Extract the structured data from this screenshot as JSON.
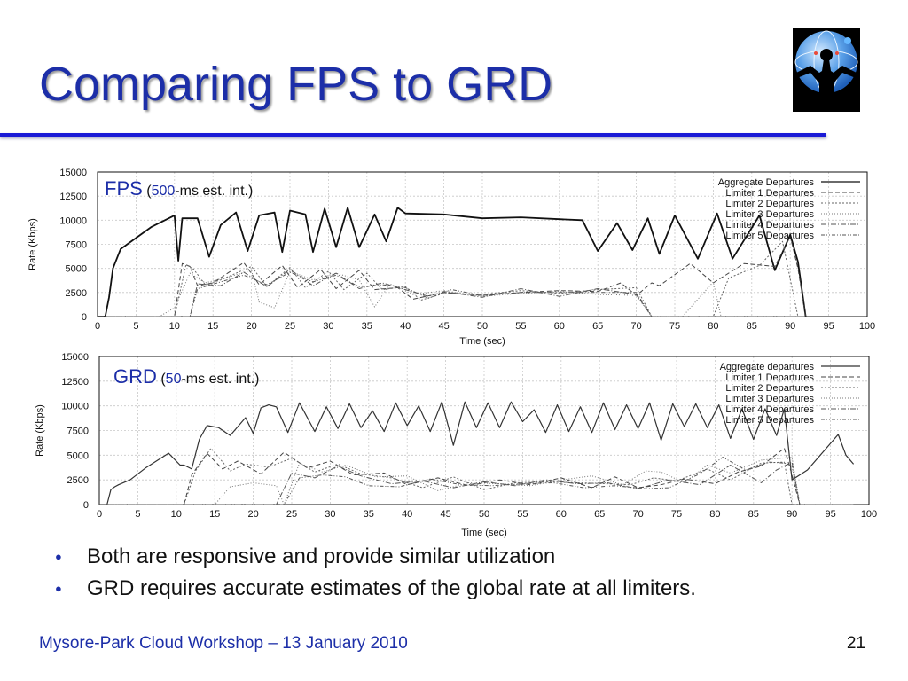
{
  "slide": {
    "title": "Comparing FPS to GRD",
    "bullets": [
      "Both are responsive and provide similar utilization",
      "GRD requires accurate estimates of the global rate at all limiters."
    ],
    "footer": {
      "left": "Mysore-Park Cloud Workshop",
      "separator": " – ",
      "date": "13 January 2010",
      "page": "21"
    },
    "colors": {
      "accent": "#1c2ea8",
      "title_rule": "#1a1ad6"
    },
    "logo_icon": "person-globe-logo-icon"
  },
  "chart_data": [
    {
      "type": "line",
      "title_main": "FPS",
      "title_open": " (",
      "title_num": "500",
      "title_rest": "-ms est. int.)",
      "xlabel": "Time (sec)",
      "ylabel": "Rate (Kbps)",
      "xlim": [
        0,
        100
      ],
      "ylim": [
        0,
        15000
      ],
      "x_ticks": [
        0,
        5,
        10,
        15,
        20,
        25,
        30,
        35,
        40,
        45,
        50,
        55,
        60,
        65,
        70,
        75,
        80,
        85,
        90,
        95,
        100
      ],
      "y_ticks": [
        0,
        2500,
        5000,
        7500,
        10000,
        12500,
        15000
      ],
      "grid": true,
      "legend_position": "top-right",
      "series": [
        {
          "name": "Aggregate Departures",
          "x": [
            0,
            1,
            1.5,
            2,
            2.5,
            3,
            7,
            10,
            10.5,
            11,
            13,
            14.5,
            16,
            18,
            19.5,
            21,
            23,
            24,
            25,
            27,
            28,
            29.5,
            31,
            32.5,
            34,
            36,
            37.5,
            39,
            40,
            45,
            50,
            55,
            60,
            63,
            65,
            67.5,
            69.5,
            71.5,
            73,
            75,
            78,
            80.5,
            82.5,
            86,
            88,
            90,
            91,
            92
          ],
          "values": [
            0,
            0,
            2000,
            5000,
            6000,
            7000,
            9300,
            10500,
            5800,
            10200,
            10200,
            6200,
            9500,
            10800,
            6800,
            10500,
            10800,
            6700,
            11000,
            10600,
            6700,
            11200,
            7200,
            11300,
            7200,
            10600,
            7800,
            11300,
            10700,
            10600,
            10200,
            10300,
            10100,
            10000,
            6800,
            9700,
            6900,
            10200,
            6500,
            10500,
            6000,
            10700,
            6000,
            10500,
            4800,
            8500,
            5700,
            0
          ]
        },
        {
          "name": "Limiter 1 Departures",
          "x": [
            0,
            10,
            11,
            12,
            13,
            15,
            19,
            21,
            24,
            26,
            29,
            31,
            34,
            36,
            39,
            41,
            45,
            50,
            55,
            60,
            65,
            68,
            70,
            72,
            73,
            77,
            80,
            84,
            88,
            90,
            91,
            92
          ],
          "values": [
            0,
            0,
            5500,
            5200,
            3200,
            3500,
            5600,
            3300,
            5300,
            3000,
            4900,
            2900,
            4800,
            2800,
            3000,
            1800,
            2500,
            2200,
            2500,
            2700,
            2600,
            3500,
            2200,
            3500,
            3200,
            5500,
            3500,
            5500,
            5200,
            8300,
            5000,
            0
          ]
        },
        {
          "name": "Limiter 2 Departures",
          "x": [
            0,
            10,
            11.5,
            12.5,
            14,
            16,
            20,
            22,
            25,
            27,
            30,
            32,
            35,
            37,
            40,
            42,
            45,
            50,
            55,
            60,
            65,
            70,
            72,
            75,
            78,
            80,
            82,
            86,
            89,
            91,
            92
          ],
          "values": [
            0,
            0,
            5400,
            4900,
            3300,
            3800,
            5200,
            3100,
            5100,
            3000,
            4700,
            2800,
            4500,
            2800,
            3100,
            1700,
            2400,
            2300,
            2700,
            2400,
            2800,
            3000,
            0,
            0,
            0,
            0,
            4000,
            5300,
            7800,
            0,
            0
          ]
        },
        {
          "name": "Limiter 3 Departures",
          "x": [
            0,
            8,
            10,
            12,
            14,
            17,
            20,
            21,
            23,
            25,
            28,
            31,
            34,
            36,
            38,
            41,
            45,
            50,
            55,
            60,
            65,
            70,
            72,
            76,
            80,
            81,
            85,
            88,
            92
          ],
          "values": [
            0,
            0,
            900,
            4500,
            3500,
            4100,
            4800,
            1500,
            900,
            4700,
            3800,
            4500,
            3800,
            1000,
            3400,
            2300,
            2700,
            2100,
            2400,
            2600,
            2300,
            2200,
            0,
            0,
            3600,
            0,
            0,
            0,
            0
          ]
        },
        {
          "name": "Limiter 4 Departures",
          "x": [
            0,
            12,
            13,
            16,
            19,
            22,
            25,
            28,
            31,
            34,
            37,
            40,
            43,
            45,
            50,
            55,
            60,
            65,
            70,
            72,
            92
          ],
          "values": [
            0,
            0,
            3400,
            3200,
            4600,
            3100,
            4900,
            3200,
            4500,
            2900,
            3500,
            2800,
            2100,
            2600,
            2000,
            2900,
            2100,
            2900,
            2300,
            0,
            0
          ]
        },
        {
          "name": "Limiter 5 Departures",
          "x": [
            0,
            12,
            13,
            16,
            19,
            22,
            25,
            28,
            31,
            34,
            37,
            40,
            43,
            46,
            50,
            55,
            60,
            65,
            70,
            72,
            92
          ],
          "values": [
            0,
            0,
            2900,
            3600,
            4300,
            3300,
            4600,
            3600,
            4300,
            3100,
            3300,
            3000,
            1900,
            2800,
            2200,
            2500,
            2500,
            2500,
            2500,
            0,
            0
          ]
        }
      ]
    },
    {
      "type": "line",
      "title_main": "GRD",
      "title_open": " (",
      "title_num": "50",
      "title_rest": "-ms est. int.)",
      "xlabel": "Time (sec)",
      "ylabel": "Rate (Kbps)",
      "xlim": [
        0,
        100
      ],
      "ylim": [
        0,
        15000
      ],
      "x_ticks": [
        0,
        5,
        10,
        15,
        20,
        25,
        30,
        35,
        40,
        45,
        50,
        55,
        60,
        65,
        70,
        75,
        80,
        85,
        90,
        95,
        100
      ],
      "y_ticks": [
        0,
        2500,
        5000,
        7500,
        10000,
        12500,
        15000
      ],
      "grid": true,
      "legend_position": "top-right",
      "series": [
        {
          "name": "Aggregate departures",
          "x": [
            0,
            1,
            1.5,
            2,
            2.5,
            4,
            6,
            9,
            10.5,
            11,
            12,
            13,
            14,
            15.5,
            17,
            19,
            20,
            21,
            22,
            23,
            24.5,
            26,
            28,
            29.5,
            31,
            32.5,
            34,
            35.5,
            37,
            38.5,
            40,
            41.5,
            43,
            44.5,
            46,
            47.5,
            49,
            50.5,
            52,
            53.5,
            55,
            56.5,
            58,
            59.5,
            61,
            62.5,
            64,
            65.5,
            67,
            68.5,
            70,
            71.5,
            73,
            74.5,
            76,
            77.5,
            79,
            80.5,
            82,
            83.5,
            85,
            86.5,
            88,
            89,
            90,
            92,
            96,
            97,
            98
          ],
          "values": [
            0,
            0,
            1500,
            1800,
            2000,
            2500,
            3700,
            5200,
            4000,
            4000,
            3600,
            6600,
            8000,
            7800,
            7000,
            8800,
            7200,
            9800,
            10100,
            9900,
            7300,
            10300,
            7400,
            9900,
            7700,
            10200,
            7800,
            9500,
            7400,
            10300,
            8000,
            10000,
            7400,
            10400,
            6000,
            10400,
            7800,
            10300,
            7800,
            10400,
            8400,
            9600,
            7300,
            10100,
            7400,
            9900,
            7300,
            10300,
            7600,
            10100,
            7700,
            10300,
            6500,
            10200,
            7900,
            10200,
            7800,
            10100,
            6700,
            9700,
            6600,
            9700,
            7000,
            9700,
            2500,
            3500,
            7100,
            5000,
            4100
          ]
        },
        {
          "name": "Limiter 1 Departures",
          "x": [
            0,
            11,
            12,
            14,
            16,
            18,
            21,
            24,
            27,
            30,
            33,
            37,
            40,
            44,
            48,
            52,
            56,
            60,
            64,
            67,
            70,
            73,
            76,
            80,
            83,
            86,
            89,
            90,
            91,
            98
          ],
          "values": [
            0,
            0,
            3000,
            5200,
            3600,
            4400,
            3100,
            5300,
            3700,
            4400,
            3000,
            3200,
            2000,
            2700,
            1900,
            2500,
            2000,
            2700,
            1700,
            2800,
            1700,
            2000,
            2600,
            2100,
            3300,
            3900,
            5700,
            3000,
            0,
            0
          ]
        },
        {
          "name": "Limiter 2 Departures",
          "x": [
            0,
            11,
            12.5,
            14.5,
            17,
            19,
            22,
            25,
            28,
            31,
            34,
            38,
            42,
            46,
            50,
            54,
            58,
            62,
            66,
            69,
            72,
            75,
            79,
            82,
            86,
            89,
            90,
            91,
            98
          ],
          "values": [
            0,
            0,
            3400,
            5700,
            3400,
            4100,
            3800,
            4700,
            3300,
            4100,
            3100,
            2700,
            1700,
            2800,
            1500,
            2200,
            2300,
            2200,
            2100,
            2000,
            2700,
            2400,
            3600,
            2500,
            4200,
            4300,
            0,
            0,
            0
          ]
        },
        {
          "name": "Limiter 3 Departures",
          "x": [
            0,
            15,
            17,
            20,
            23,
            24,
            26,
            29,
            32,
            36,
            40,
            44,
            48,
            52,
            56,
            60,
            64,
            68,
            71,
            73,
            76,
            79,
            82,
            86,
            90,
            91,
            98
          ],
          "values": [
            0,
            0,
            1800,
            2200,
            1900,
            0,
            4200,
            3300,
            4000,
            2800,
            2900,
            1400,
            2200,
            2100,
            1900,
            2500,
            2900,
            2000,
            3400,
            3300,
            2200,
            4000,
            3200,
            4500,
            4800,
            0,
            0
          ]
        },
        {
          "name": "Limiter 4 Departures",
          "x": [
            0,
            23,
            25,
            28,
            31,
            34,
            38,
            42,
            46,
            50,
            54,
            58,
            62,
            66,
            70,
            74,
            78,
            82,
            86,
            88,
            90,
            91,
            98
          ],
          "values": [
            0,
            0,
            3200,
            2700,
            3900,
            2900,
            2100,
            2400,
            1700,
            2300,
            1900,
            2500,
            2100,
            2200,
            1600,
            2500,
            2000,
            4000,
            2200,
            3500,
            4300,
            0,
            0
          ]
        },
        {
          "name": "Limiter 5 Departures",
          "x": [
            0,
            24,
            26,
            29,
            32,
            35,
            39,
            43,
            47,
            51,
            55,
            59,
            63,
            67,
            71,
            74,
            78,
            81,
            84,
            87,
            89,
            90,
            91,
            98
          ],
          "values": [
            0,
            0,
            2700,
            3000,
            2800,
            1900,
            1800,
            2600,
            2000,
            1900,
            2100,
            2200,
            1700,
            1900,
            1600,
            1700,
            3100,
            4800,
            3500,
            4300,
            4200,
            3900,
            0,
            0
          ]
        }
      ]
    }
  ]
}
